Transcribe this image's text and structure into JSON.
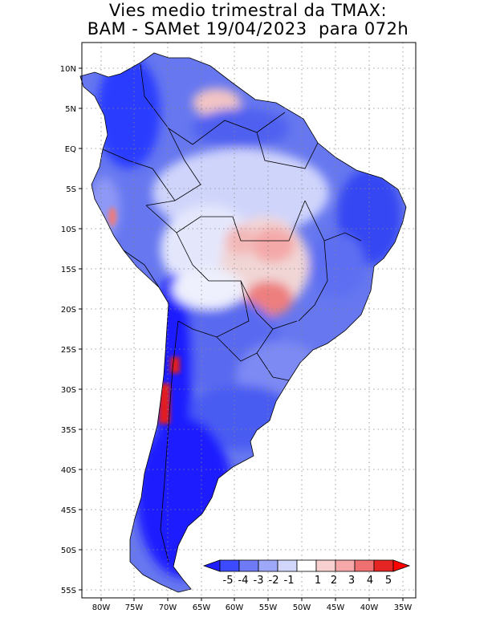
{
  "title": {
    "line1": "Vies medio trimestral da TMAX:",
    "line2": "BAM - SAMet 19/04/2023  para 072h"
  },
  "map": {
    "region": "South America",
    "lon_range": [
      -84,
      -35
    ],
    "lat_range": [
      -56,
      13
    ],
    "grid": "dotted",
    "lat_ticks": [
      "10N",
      "5N",
      "EQ",
      "5S",
      "10S",
      "15S",
      "20S",
      "25S",
      "30S",
      "35S",
      "40S",
      "45S",
      "50S",
      "55S"
    ],
    "lon_ticks": [
      "80W",
      "75W",
      "70W",
      "65W",
      "60W",
      "55W",
      "50W",
      "45W",
      "40W",
      "35W"
    ],
    "ocean_color": "#ffffff",
    "land_colors": {
      "strong_negative": "#1e1eff",
      "negative": "#5b6cf0",
      "weak_negative": "#cfd4fb",
      "near_zero": "#ffffff",
      "weak_positive": "#f6b4b4",
      "positive": "#ee7a7a",
      "strong_positive": "#e31a1a"
    }
  },
  "colorbar": {
    "labels": [
      "-5",
      "-4",
      "-3",
      "-2",
      "-1",
      "1",
      "2",
      "3",
      "4",
      "5"
    ],
    "colors": [
      "#1e1eff",
      "#3c4bff",
      "#6e7bf5",
      "#9ea8f8",
      "#d2d6fb",
      "#ffffff",
      "#f9d0d0",
      "#f6a8a8",
      "#ee7070",
      "#e52424",
      "#ff0000"
    ]
  }
}
